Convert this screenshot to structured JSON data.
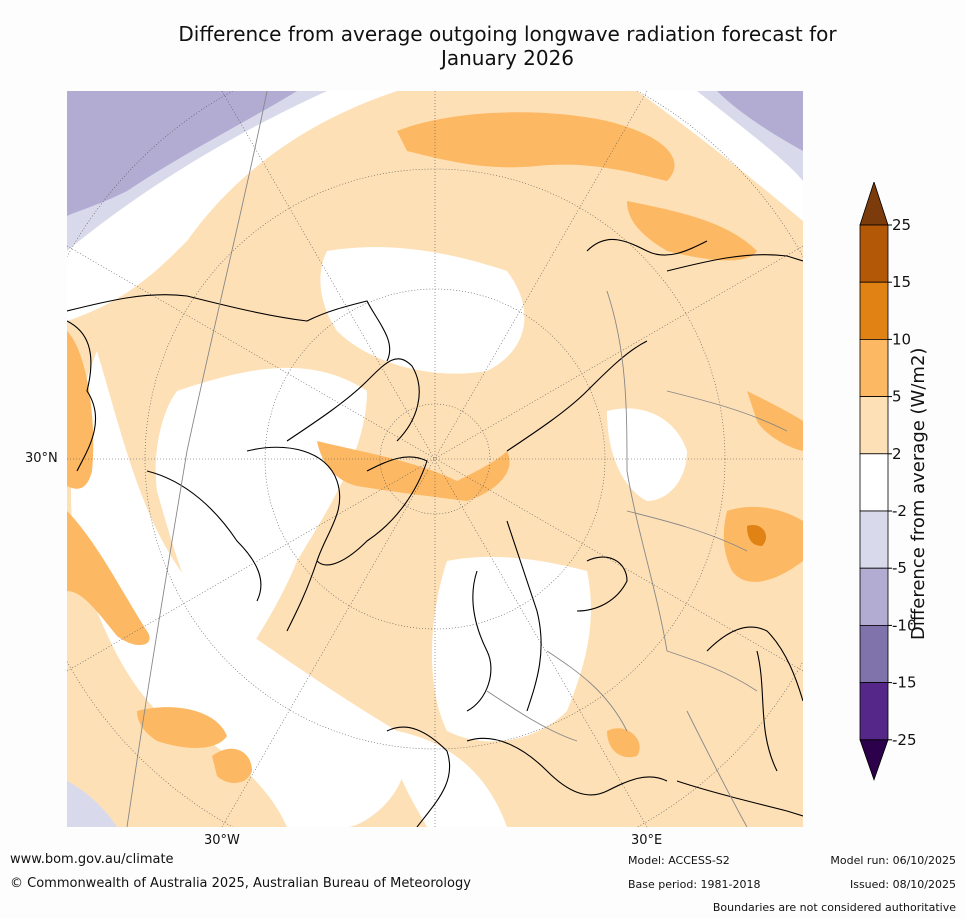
{
  "title": {
    "line1": "Difference from average outgoing longwave radiation forecast for",
    "line2": "January 2026"
  },
  "map": {
    "lat_label": "30°N",
    "lon_labels": [
      "30°W",
      "30°E"
    ]
  },
  "colorbar": {
    "label": "Difference from average (W/m2)",
    "ticks": [
      "25",
      "15",
      "10",
      "5",
      "2",
      "-2",
      "-5",
      "-10",
      "-15",
      "-25"
    ],
    "colors": [
      "#7c3b0a",
      "#b35806",
      "#e08214",
      "#fdb863",
      "#fee0b6",
      "#ffffff",
      "#d8daeb",
      "#b2abd2",
      "#8073ac",
      "#542788",
      "#2d004b"
    ]
  },
  "footer": {
    "website": "www.bom.gov.au/climate",
    "copyright": "© Commonwealth of Australia 2025, Australian Bureau of Meteorology",
    "model": "Model: ACCESS-S2",
    "base_period": "Base period: 1981-2018",
    "model_run": "Model run: 06/10/2025",
    "issued": "Issued: 08/10/2025",
    "disclaimer": "Boundaries are not considered authoritative"
  }
}
